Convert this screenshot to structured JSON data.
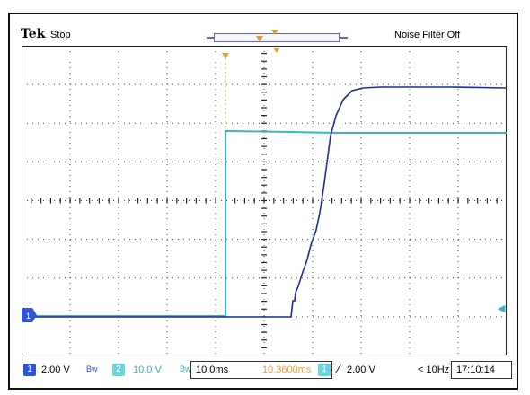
{
  "header": {
    "brand": "Tek",
    "acquisition_state": "Stop",
    "noise_filter": "Noise Filter Off"
  },
  "trigger_markers": {
    "position_label": "T",
    "center_label": "▼"
  },
  "channel_markers": {
    "ch1": "1",
    "ch2_arrow": "◀"
  },
  "status": {
    "ch1_badge": "1",
    "ch1_scale": "2.00 V",
    "ch1_bw": "Bw",
    "ch2_badge": "2",
    "ch2_scale": "10.0 V",
    "ch2_bw": "Bw",
    "timebase": "10.0ms",
    "trigger_position": "10.3600ms",
    "trigger_badge": "1",
    "trigger_level": "2.00 V",
    "trigger_freq": "< 10Hz",
    "time": "17:10:14"
  },
  "colors": {
    "ch1": "#1f2a9e",
    "ch2": "#37b6c2",
    "trigger": "#e3a03a",
    "ch1_marker": "#2f55d6",
    "grid": "#222222"
  }
}
